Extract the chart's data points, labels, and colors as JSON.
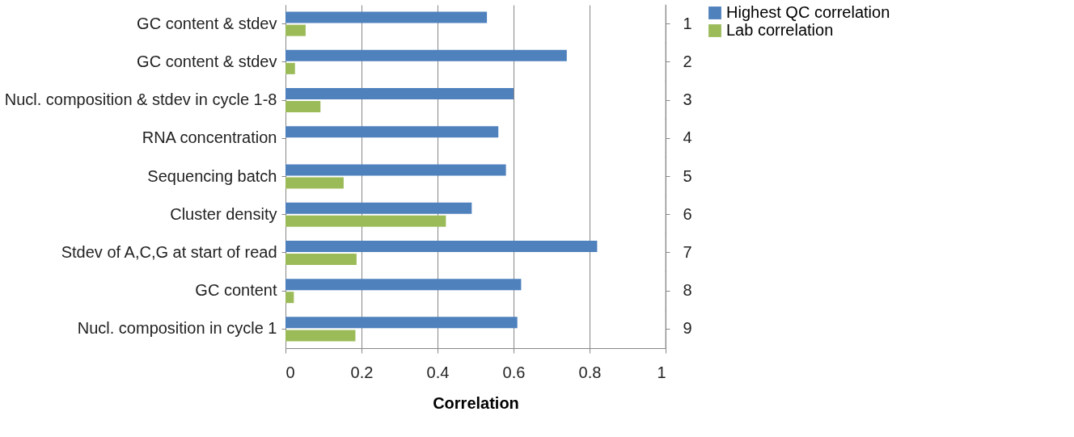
{
  "chart_data": {
    "type": "bar",
    "orientation": "horizontal",
    "xlabel": "Correlation",
    "categories": [
      "GC content & stdev",
      "GC content & stdev",
      "Nucl. composition & stdev in cycle 1-8",
      "RNA concentration",
      "Sequencing batch",
      "Cluster density",
      "Stdev of A,C,G at start of read",
      "GC content",
      "Nucl. composition in cycle 1"
    ],
    "y2_categories": [
      "1",
      "2",
      "3",
      "4",
      "5",
      "6",
      "7",
      "8",
      "9"
    ],
    "series": [
      {
        "name": "Highest QC correlation",
        "color": "#4f81bd",
        "values": [
          0.53,
          0.74,
          0.6,
          0.56,
          0.58,
          0.49,
          0.82,
          0.62,
          0.61
        ]
      },
      {
        "name": "Lab correlation",
        "color": "#9bbb59",
        "values": [
          0.053,
          0.025,
          0.092,
          null,
          0.153,
          0.422,
          0.187,
          0.022,
          0.184
        ]
      }
    ],
    "xlim": [
      0,
      1
    ],
    "xticks": [
      0,
      0.2,
      0.4,
      0.6,
      0.8,
      1
    ],
    "grid": "x",
    "legend": "right"
  }
}
